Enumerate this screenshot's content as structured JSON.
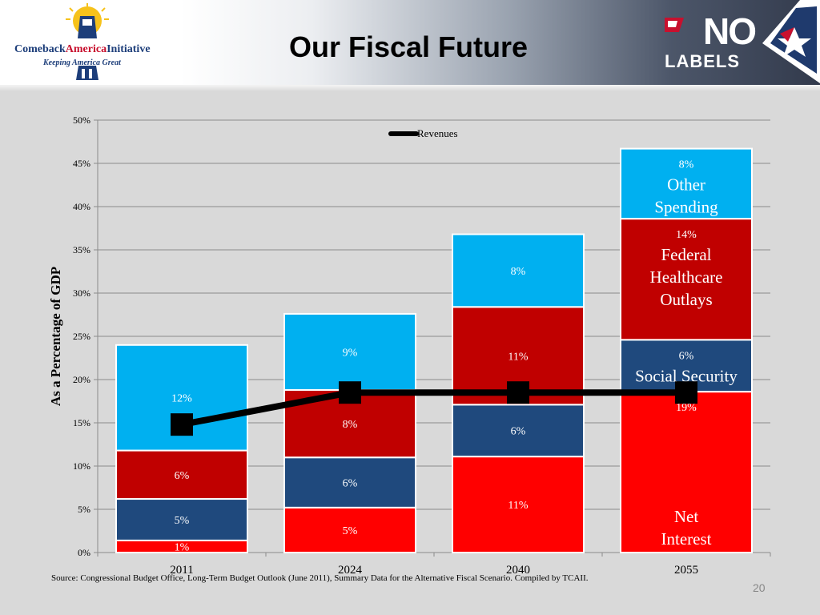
{
  "slide": {
    "title": "Our Fiscal Future",
    "page_number": "20",
    "source": "Source: Congressional Budget Office, Long-Term Budget Outlook (June 2011), Summary Data for the Alternative  Fiscal Scenario. Compiled by TCAII."
  },
  "logos": {
    "left_name_part1": "Comeback",
    "left_name_part2": "America",
    "left_name_part3": "Initiative",
    "left_tagline": "Keeping America Great",
    "right_top": "NO",
    "right_bottom": "LABELS"
  },
  "chart_data": {
    "type": "bar",
    "stacked": true,
    "categories": [
      "2011",
      "2024",
      "2040",
      "2055"
    ],
    "ylabel": "As a Percentage of GDP",
    "ylim": [
      0,
      50
    ],
    "yticks": [
      "0%",
      "5%",
      "10%",
      "15%",
      "20%",
      "25%",
      "30%",
      "35%",
      "40%",
      "45%",
      "50%"
    ],
    "grid": true,
    "legend_position": "top-center",
    "series": [
      {
        "key": "net_interest",
        "values": [
          1.4,
          5.2,
          11.1,
          18.6
        ],
        "labels": [
          "1%",
          "5%",
          "11%",
          "19%"
        ],
        "color": "#ff0000"
      },
      {
        "key": "social_security",
        "values": [
          4.8,
          5.8,
          6.0,
          6.0
        ],
        "labels": [
          "5%",
          "6%",
          "6%",
          "6%"
        ],
        "color": "#1f497d"
      },
      {
        "key": "federal_healthcare",
        "values": [
          5.6,
          7.8,
          11.3,
          14.0
        ],
        "labels": [
          "6%",
          "8%",
          "11%",
          "14%"
        ],
        "color": "#c00000"
      },
      {
        "key": "other_spending",
        "values": [
          12.2,
          8.8,
          8.4,
          8.1
        ],
        "labels": [
          "12%",
          "9%",
          "8%",
          "8%"
        ],
        "color": "#00b0f0"
      }
    ],
    "line_series": {
      "name": "Revenues",
      "values": [
        14.8,
        18.5,
        18.5,
        18.5
      ],
      "color": "#000000"
    },
    "annotations": [
      {
        "series": "other_spending",
        "category": "2055",
        "lines": [
          "Other",
          "Spending"
        ]
      },
      {
        "series": "federal_healthcare",
        "category": "2055",
        "lines": [
          "Federal",
          "Healthcare",
          "Outlays"
        ]
      },
      {
        "series": "social_security",
        "category": "2055",
        "lines": [
          "Social Security"
        ]
      },
      {
        "series": "net_interest",
        "category": "2055",
        "lines": [
          "Net",
          "Interest"
        ]
      }
    ]
  }
}
